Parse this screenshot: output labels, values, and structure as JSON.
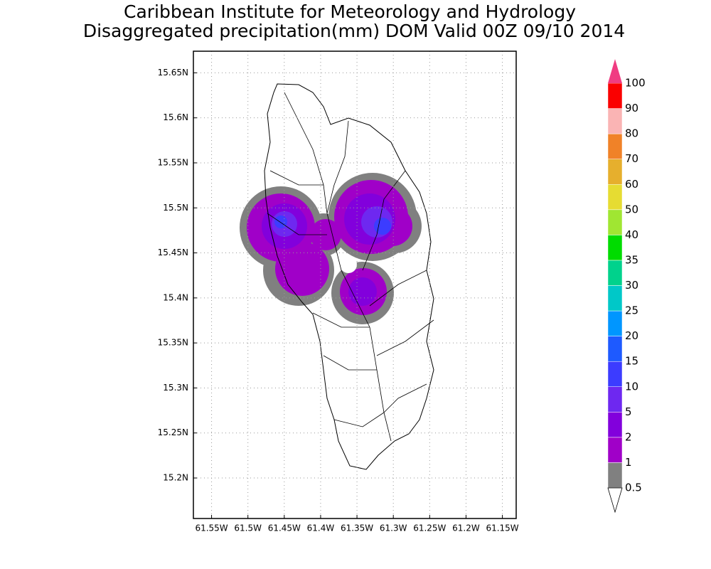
{
  "title": "Caribbean Institute for Meteorology and Hydrology",
  "subtitle": "Disaggregated precipitation(mm) DOM Valid 00Z 09/10 2014",
  "map": {
    "xlim": [
      -61.575,
      -61.131
    ],
    "ylim": [
      15.155,
      15.674
    ],
    "grid": true,
    "lon_ticks": [
      {
        "value": -61.55,
        "label": "61.55W"
      },
      {
        "value": -61.5,
        "label": "61.5W"
      },
      {
        "value": -61.45,
        "label": "61.45W"
      },
      {
        "value": -61.4,
        "label": "61.4W"
      },
      {
        "value": -61.35,
        "label": "61.35W"
      },
      {
        "value": -61.3,
        "label": "61.3W"
      },
      {
        "value": -61.25,
        "label": "61.25W"
      },
      {
        "value": -61.2,
        "label": "61.2W"
      },
      {
        "value": -61.15,
        "label": "61.15W"
      }
    ],
    "lat_ticks": [
      {
        "value": 15.65,
        "label": "15.65N"
      },
      {
        "value": 15.6,
        "label": "15.6N"
      },
      {
        "value": 15.55,
        "label": "15.55N"
      },
      {
        "value": 15.5,
        "label": "15.5N"
      },
      {
        "value": 15.45,
        "label": "15.45N"
      },
      {
        "value": 15.4,
        "label": "15.4N"
      },
      {
        "value": 15.35,
        "label": "15.35N"
      },
      {
        "value": 15.3,
        "label": "15.3N"
      },
      {
        "value": 15.25,
        "label": "15.25N"
      },
      {
        "value": 15.2,
        "label": "15.2N"
      }
    ]
  },
  "colorbar": {
    "levels": [
      0.5,
      1,
      2,
      5,
      10,
      15,
      20,
      25,
      30,
      35,
      40,
      50,
      60,
      70,
      80,
      90,
      100
    ],
    "below_color": "#ffffff",
    "colors": [
      "#808080",
      "#a000c8",
      "#8200dc",
      "#6e28f0",
      "#3c3cff",
      "#1e5aff",
      "#0096ff",
      "#00c8c8",
      "#00d28c",
      "#00dc00",
      "#a0e632",
      "#e6dc32",
      "#e6af2d",
      "#f08228",
      "#fab4b4",
      "#fa0000"
    ],
    "above_color": "#f03c82"
  }
}
